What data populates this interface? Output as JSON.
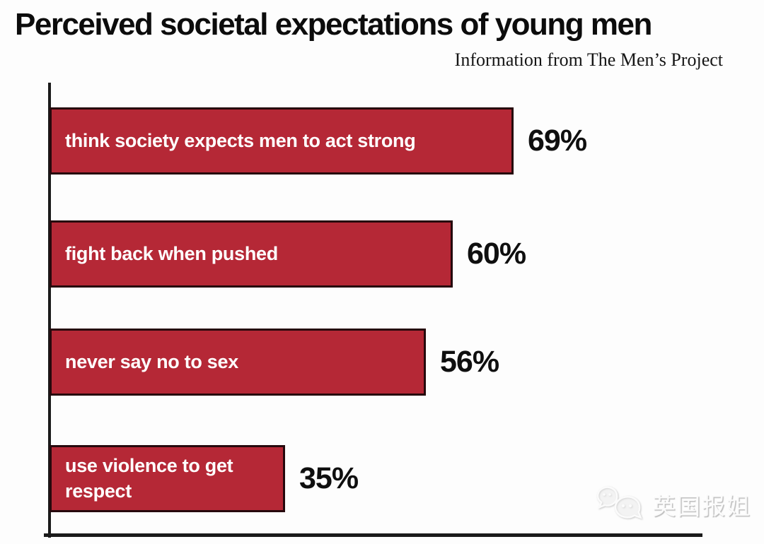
{
  "title": "Perceived societal expectations of young men",
  "subtitle": "Information from The Men’s Project",
  "watermark": {
    "text": "英国报姐",
    "icon": "chat-bubbles-icon"
  },
  "chart_data": {
    "type": "bar",
    "orientation": "horizontal",
    "title": "Perceived societal expectations of young men",
    "subtitle": "Information from The Men’s Project",
    "categories": [
      "think society expects men to act strong",
      "fight back when pushed",
      "never say no to sex",
      "use violence to get respect"
    ],
    "values": [
      69,
      60,
      56,
      35
    ],
    "value_labels": [
      "69%",
      "60%",
      "56%",
      "35%"
    ],
    "unit": "%",
    "xlabel": "",
    "ylabel": "",
    "xlim": [
      0,
      100
    ],
    "grid": false,
    "legend": false,
    "bar_color": "#b52836",
    "bar_border_color": "#26090d",
    "axis_color": "#1b1b1b",
    "bar_label_color": "#ffffff",
    "value_label_color": "#0f0f0f"
  }
}
